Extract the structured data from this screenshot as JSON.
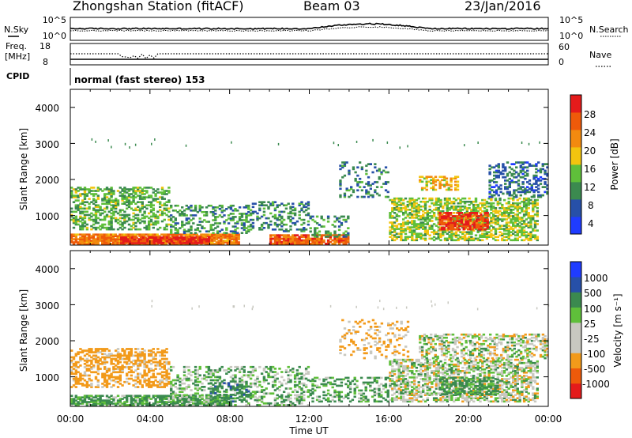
{
  "header": {
    "station": "Zhongshan Station (fitACF)",
    "beam": "Beam 03",
    "date": "23/Jan/2016"
  },
  "top_panels": {
    "nsky_label": "N.Sky",
    "nsky_ticks": [
      "10^5",
      "10^0"
    ],
    "nsearch_label": "N.Search",
    "nsearch_ticks": [
      "10^5",
      "10^0"
    ],
    "freq_label_1": "Freq.",
    "freq_label_2": "[MHz]",
    "freq_ticks": [
      "18",
      "8"
    ],
    "nave_label": "Nave",
    "nave_ticks": [
      "60",
      "0"
    ],
    "cpid_label": "CPID",
    "cpid_text": "normal (fast stereo) 153"
  },
  "colors": {
    "power_scale": [
      "#1f3cff",
      "#2750a8",
      "#3b8a4f",
      "#5fbf3a",
      "#f2c40f",
      "#f28a0f",
      "#ee5a0a",
      "#e41b1b"
    ],
    "velocity_scale": [
      "#e41b1b",
      "#ee5a0a",
      "#f29a1a",
      "#c8c8c0",
      "#c8c8c0",
      "#5fbf3a",
      "#3b8a4f",
      "#2750a8",
      "#1f3cff"
    ]
  },
  "chart_data": [
    {
      "type": "heatmap",
      "name": "power",
      "ylabel": "Slant Range [km]",
      "yticks": [
        "4000",
        "3000",
        "2000",
        "1000"
      ],
      "ylim": [
        180,
        4500
      ],
      "xlim_hours": [
        0,
        24
      ],
      "colorbar_label": "Power [dB]",
      "colorbar_ticks": [
        "28",
        "24",
        "20",
        "16",
        "12",
        "8",
        "4"
      ],
      "colorbar_range": [
        0,
        30
      ],
      "regions": [
        {
          "t0": 0,
          "t1": 8.5,
          "r0": 200,
          "r1": 500,
          "level": 22,
          "density": 0.9
        },
        {
          "t0": 2.5,
          "t1": 7,
          "r0": 220,
          "r1": 420,
          "level": 28,
          "density": 0.9
        },
        {
          "t0": 10,
          "t1": 14,
          "r0": 200,
          "r1": 480,
          "level": 24,
          "density": 0.85
        },
        {
          "t0": 0,
          "t1": 5,
          "r0": 600,
          "r1": 1800,
          "level": 12,
          "density": 0.45
        },
        {
          "t0": 5,
          "t1": 9,
          "r0": 500,
          "r1": 1300,
          "level": 10,
          "density": 0.35
        },
        {
          "t0": 9,
          "t1": 12,
          "r0": 550,
          "r1": 1400,
          "level": 9,
          "density": 0.3
        },
        {
          "t0": 12,
          "t1": 14,
          "r0": 400,
          "r1": 1000,
          "level": 10,
          "density": 0.3
        },
        {
          "t0": 16,
          "t1": 23.5,
          "r0": 300,
          "r1": 1500,
          "level": 14,
          "density": 0.55
        },
        {
          "t0": 18.5,
          "t1": 21,
          "r0": 600,
          "r1": 1100,
          "level": 26,
          "density": 0.7
        },
        {
          "t0": 17.5,
          "t1": 19.5,
          "r0": 1700,
          "r1": 2100,
          "level": 18,
          "density": 0.5
        },
        {
          "t0": 13.5,
          "t1": 16,
          "r0": 1500,
          "r1": 2500,
          "level": 8,
          "density": 0.2
        },
        {
          "t0": 21,
          "t1": 24,
          "r0": 1500,
          "r1": 2500,
          "level": 7,
          "density": 0.35
        }
      ]
    },
    {
      "type": "heatmap",
      "name": "velocity",
      "ylabel": "Slant Range [km]",
      "yticks": [
        "4000",
        "3000",
        "2000",
        "1000"
      ],
      "ylim": [
        180,
        4500
      ],
      "xlim_hours": [
        0,
        24
      ],
      "xticks": [
        "00:00",
        "04:00",
        "08:00",
        "12:00",
        "16:00",
        "20:00",
        "00:00"
      ],
      "xlabel": "Time UT",
      "colorbar_label": "Velocity [m s⁻¹]",
      "colorbar_ticks": [
        "1000",
        "500",
        "100",
        "25",
        "-25",
        "-100",
        "-500",
        "-1000"
      ],
      "regions": [
        {
          "t0": 0,
          "t1": 5,
          "r0": 700,
          "r1": 1800,
          "vel": -200,
          "density": 0.45
        },
        {
          "t0": 0,
          "t1": 8,
          "r0": 200,
          "r1": 500,
          "vel": 150,
          "density": 0.7
        },
        {
          "t0": 5,
          "t1": 12,
          "r0": 200,
          "r1": 1300,
          "vel": 80,
          "density": 0.35
        },
        {
          "t0": 7,
          "t1": 9,
          "r0": 300,
          "r1": 900,
          "vel": 400,
          "density": 0.3
        },
        {
          "t0": 12,
          "t1": 16,
          "r0": 300,
          "r1": 1000,
          "vel": 120,
          "density": 0.35
        },
        {
          "t0": 16,
          "t1": 23.5,
          "r0": 300,
          "r1": 1500,
          "vel": 0,
          "density": 0.55
        },
        {
          "t0": 18.5,
          "t1": 21.5,
          "r0": 500,
          "r1": 1000,
          "vel": 200,
          "density": 0.5
        },
        {
          "t0": 17.5,
          "t1": 24,
          "r0": 1500,
          "r1": 2200,
          "vel": -10,
          "density": 0.4
        },
        {
          "t0": 13.5,
          "t1": 17,
          "r0": 1500,
          "r1": 2600,
          "vel": -150,
          "density": 0.2
        }
      ]
    }
  ]
}
